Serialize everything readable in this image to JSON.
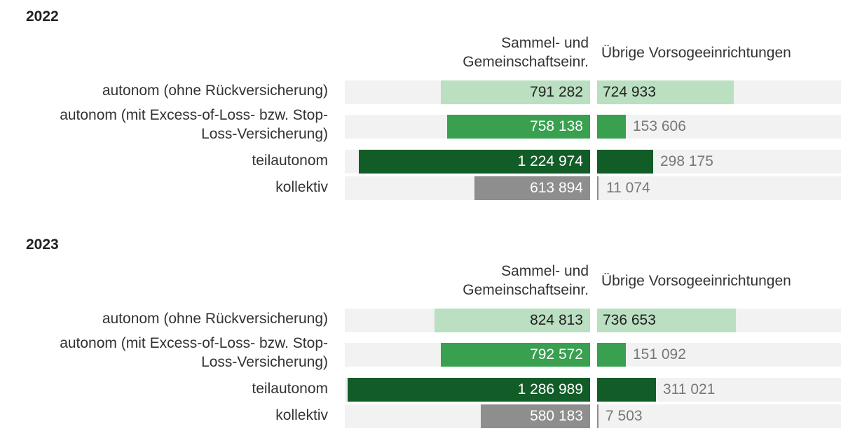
{
  "colors": {
    "autonom_ohne": "#badfc1",
    "autonom_mit": "#38a04f",
    "teilautonom": "#125d27",
    "kollektiv": "#8e8e8e",
    "track": "#f2f2f2",
    "text_dark": "#222222",
    "text_light": "#ffffff",
    "text_gray": "#777777"
  },
  "chart_data": [
    {
      "type": "bar",
      "title": "2022",
      "orientation": "horizontal",
      "categories": [
        "autonom (ohne Rückversicherung)",
        "autonom (mit Excess-of-Loss- bzw. Stop-Loss-Versicherung)",
        "teilautonom",
        "kollektiv"
      ],
      "category_lines": [
        [
          "autonom (ohne Rückversicherung)"
        ],
        [
          "autonom (mit Excess-of-Loss- bzw. Stop-",
          "Loss-Versicherung)"
        ],
        [
          "teilautonom"
        ],
        [
          "kollektiv"
        ]
      ],
      "series": [
        {
          "name": "Sammel- und Gemeinschaftseinr.",
          "name_lines": [
            "Sammel- und",
            "Gemeinschaftseinr."
          ],
          "values": [
            791282,
            758138,
            1224974,
            613894
          ],
          "labels": [
            "791 282",
            "758 138",
            "1 224 974",
            "613 894"
          ]
        },
        {
          "name": "Übrige Vorsogeeinrichtungen",
          "name_lines": [
            "Übrige Vorsogeeinrichtungen"
          ],
          "values": [
            724933,
            153606,
            298175,
            11074
          ],
          "labels": [
            "724 933",
            "153 606",
            "298 175",
            "11 074"
          ]
        }
      ],
      "xlim": [
        0,
        1300000
      ]
    },
    {
      "type": "bar",
      "title": "2023",
      "orientation": "horizontal",
      "categories": [
        "autonom (ohne Rückversicherung)",
        "autonom (mit Excess-of-Loss- bzw. Stop-Loss-Versicherung)",
        "teilautonom",
        "kollektiv"
      ],
      "category_lines": [
        [
          "autonom (ohne Rückversicherung)"
        ],
        [
          "autonom (mit Excess-of-Loss- bzw. Stop-",
          "Loss-Versicherung)"
        ],
        [
          "teilautonom"
        ],
        [
          "kollektiv"
        ]
      ],
      "series": [
        {
          "name": "Sammel- und Gemeinschaftseinr.",
          "name_lines": [
            "Sammel- und",
            "Gemeinschaftseinr."
          ],
          "values": [
            824813,
            792572,
            1286989,
            580183
          ],
          "labels": [
            "824 813",
            "792 572",
            "1 286 989",
            "580 183"
          ]
        },
        {
          "name": "Übrige Vorsogeeinrichtungen",
          "name_lines": [
            "Übrige Vorsogeeinrichtungen"
          ],
          "values": [
            736653,
            151092,
            311021,
            7503
          ],
          "labels": [
            "736 653",
            "151 092",
            "311 021",
            "7 503"
          ]
        }
      ],
      "xlim": [
        0,
        1300000
      ]
    }
  ]
}
